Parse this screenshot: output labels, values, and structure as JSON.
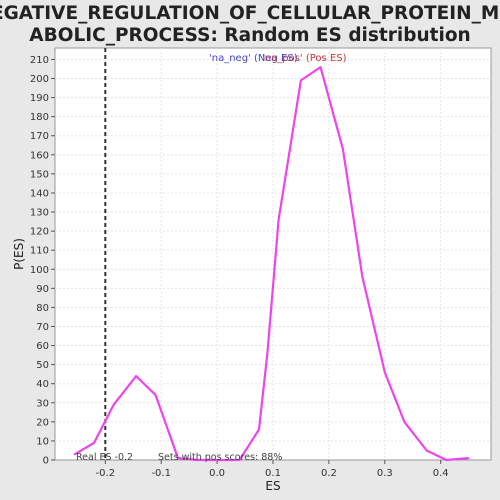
{
  "chart_data": {
    "type": "line",
    "title_lines": [
      "NEGATIVE_REGULATION_OF_CELLULAR_PROTEIN_MET",
      "ABOLIC_PROCESS: Random ES distribution"
    ],
    "xlabel": "ES",
    "ylabel": "P(ES)",
    "xlim": [
      -0.29,
      0.49
    ],
    "ylim": [
      0,
      216
    ],
    "x_ticks": [
      -0.2,
      -0.1,
      0.0,
      0.1,
      0.2,
      0.3,
      0.4
    ],
    "x_tick_labels": [
      "-0.2",
      "-0.1",
      "0.0",
      "0.1",
      "0.2",
      "0.3",
      "0.4"
    ],
    "y_ticks": [
      0,
      10,
      20,
      30,
      40,
      50,
      60,
      70,
      80,
      90,
      100,
      110,
      120,
      130,
      140,
      150,
      160,
      170,
      180,
      190,
      200,
      210
    ],
    "grid": true,
    "legend": {
      "placement": "top-center",
      "entries": [
        {
          "label": "'na_neg' (Neg ES)",
          "color": "#4444cc"
        },
        {
          "label": "'na_pos' (Pos ES)",
          "color": "#cc3333"
        }
      ]
    },
    "series": [
      {
        "color": "#ee44ee",
        "x": [
          -0.255,
          -0.22,
          -0.185,
          -0.145,
          -0.11,
          -0.07,
          -0.035,
          0.0,
          0.04,
          0.075,
          0.09,
          0.11,
          0.15,
          0.185,
          0.225,
          0.26,
          0.3,
          0.335,
          0.375,
          0.41,
          0.45
        ],
        "y": [
          3,
          9,
          29,
          44,
          34,
          1,
          0,
          0,
          0,
          16,
          56,
          126,
          199,
          206,
          163,
          96,
          46,
          20,
          5,
          0,
          1
        ]
      }
    ],
    "real_es": {
      "x": -0.2,
      "color": "#333333"
    },
    "annotations": {
      "real_es_label": "Real ES -0.2",
      "pos_scores_label": "Sets with pos scores: 88%"
    }
  }
}
